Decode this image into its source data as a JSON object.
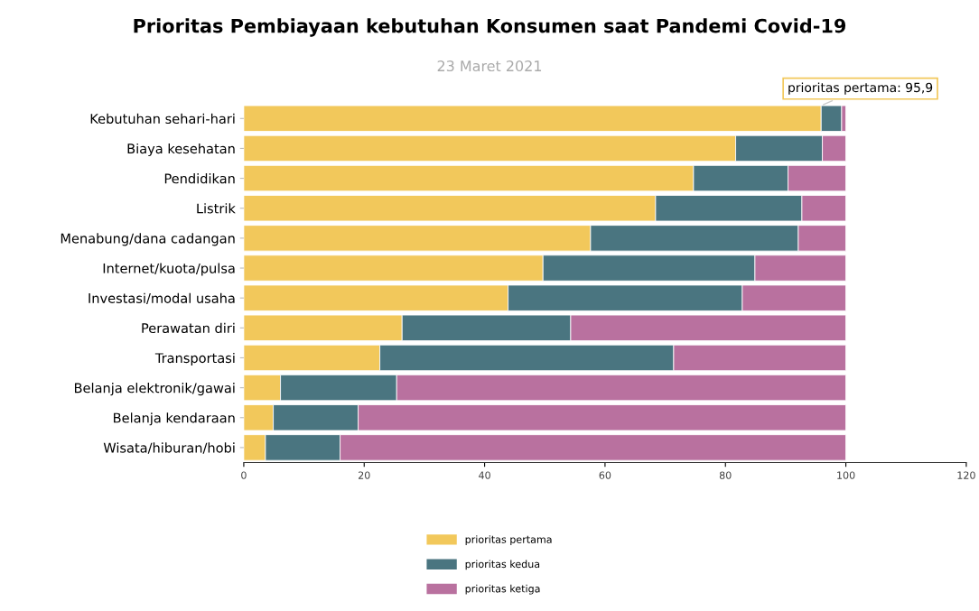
{
  "chart_data": {
    "type": "bar",
    "orientation": "horizontal",
    "stacked": true,
    "title": "Prioritas Pembiayaan kebutuhan Konsumen saat Pandemi Covid-19",
    "subtitle": "23 Maret 2021",
    "categories": [
      "Kebutuhan sehari-hari",
      "Biaya kesehatan",
      "Pendidikan",
      "Listrik",
      "Menabung/dana cadangan",
      "Internet/kuota/pulsa",
      "Investasi/modal usaha",
      "Perawatan diri",
      "Transportasi",
      "Belanja elektronik/gawai",
      "Belanja kendaraan",
      "Wisata/hiburan/hobi"
    ],
    "series": [
      {
        "name": "prioritas pertama",
        "color": "#f2c85b",
        "values": [
          95.9,
          81.7,
          74.7,
          68.4,
          57.6,
          49.7,
          43.9,
          26.3,
          22.6,
          6.1,
          4.9,
          3.6
        ]
      },
      {
        "name": "prioritas kedua",
        "color": "#4a7580",
        "values": [
          3.4,
          14.4,
          15.7,
          24.3,
          34.5,
          35.2,
          38.9,
          28.0,
          48.8,
          19.3,
          14.1,
          12.4
        ]
      },
      {
        "name": "prioritas ketiga",
        "color": "#b9719f",
        "values": [
          0.7,
          3.9,
          9.6,
          7.3,
          7.9,
          15.1,
          17.2,
          45.7,
          28.6,
          74.6,
          81.0,
          84.0
        ]
      }
    ],
    "xlim": [
      0,
      120
    ],
    "xticks": [
      0,
      20,
      40,
      60,
      80,
      100,
      120
    ],
    "annotations": [
      {
        "text": "prioritas pertama: 95,9",
        "x": 95.9,
        "y": "Kebutuhan sehari-hari"
      }
    ],
    "grid": false,
    "legend": "bottom"
  }
}
